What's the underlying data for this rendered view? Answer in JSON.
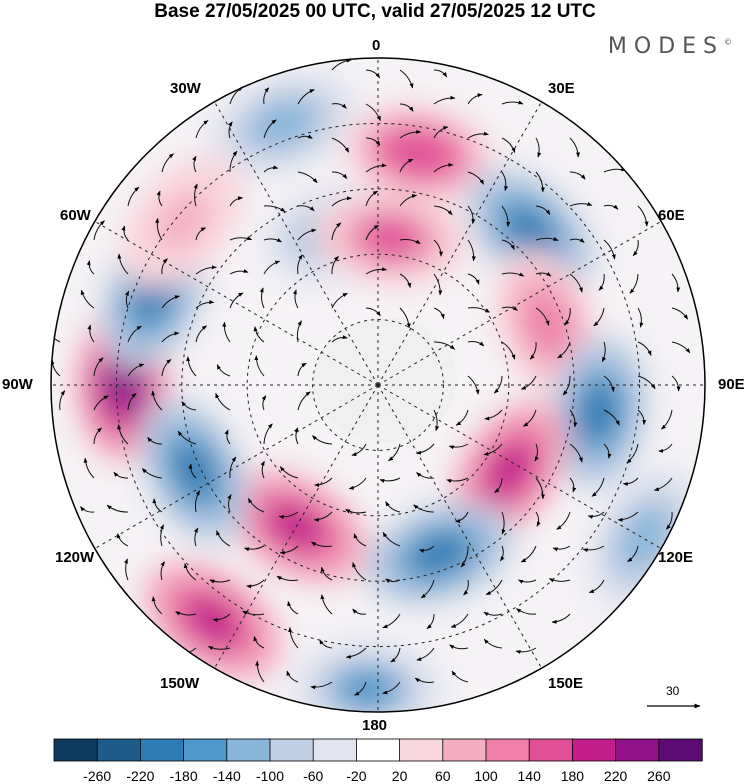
{
  "title": "Base 27/05/2025 00 UTC, valid 27/05/2025 12 UTC",
  "brand": "MODES",
  "brand_mark": "©",
  "projection": "south-polar-stereographic",
  "longitude_labels": {
    "top": "0",
    "bottom": "180",
    "left": "90W",
    "right": "90E",
    "upper_left_1": "30W",
    "upper_left_2": "60W",
    "upper_right_1": "30E",
    "upper_right_2": "60E",
    "lower_left_1": "120W",
    "lower_left_2": "150W",
    "lower_right_1": "120E",
    "lower_right_2": "150E"
  },
  "vector_reference": {
    "value": "30",
    "icon": "arrow-right-icon"
  },
  "colorbar": {
    "ticks": [
      "-260",
      "-220",
      "-180",
      "-140",
      "-100",
      "-60",
      "-20",
      "20",
      "60",
      "100",
      "140",
      "180",
      "220",
      "260"
    ],
    "colors": [
      "#0d3b5e",
      "#1e5b8a",
      "#2d7cb5",
      "#4e97c9",
      "#88b5d8",
      "#c0cfe3",
      "#e2e4f0",
      "#ffffff",
      "#f8d6dd",
      "#f4aec1",
      "#ef7fa9",
      "#e04f98",
      "#c41e8b",
      "#8f1288",
      "#5c0b75"
    ]
  },
  "anomaly_centers": [
    {
      "lon": -90,
      "lat_from_pole": 0.78,
      "value": 240
    },
    {
      "lon": -68,
      "lat_from_pole": 0.74,
      "value": -190
    },
    {
      "lon": -20,
      "lat_from_pole": 0.85,
      "value": -120
    },
    {
      "lon": -50,
      "lat_from_pole": 0.78,
      "value": 70
    },
    {
      "lon": -15,
      "lat_from_pole": 0.48,
      "value": -100
    },
    {
      "lon": 10,
      "lat_from_pole": 0.72,
      "value": 170
    },
    {
      "lon": 5,
      "lat_from_pole": 0.45,
      "value": 160
    },
    {
      "lon": 45,
      "lat_from_pole": 0.66,
      "value": -180
    },
    {
      "lon": 70,
      "lat_from_pole": 0.55,
      "value": 120
    },
    {
      "lon": 97,
      "lat_from_pole": 0.68,
      "value": -200
    },
    {
      "lon": 123,
      "lat_from_pole": 0.48,
      "value": 190
    },
    {
      "lon": 160,
      "lat_from_pole": 0.55,
      "value": -210
    },
    {
      "lon": -150,
      "lat_from_pole": 0.5,
      "value": 200
    },
    {
      "lon": -115,
      "lat_from_pole": 0.62,
      "value": -190
    },
    {
      "lon": -145,
      "lat_from_pole": 0.88,
      "value": 190
    },
    {
      "lon": -178,
      "lat_from_pole": 0.93,
      "value": -160
    },
    {
      "lon": 120,
      "lat_from_pole": 0.94,
      "value": -120
    }
  ]
}
